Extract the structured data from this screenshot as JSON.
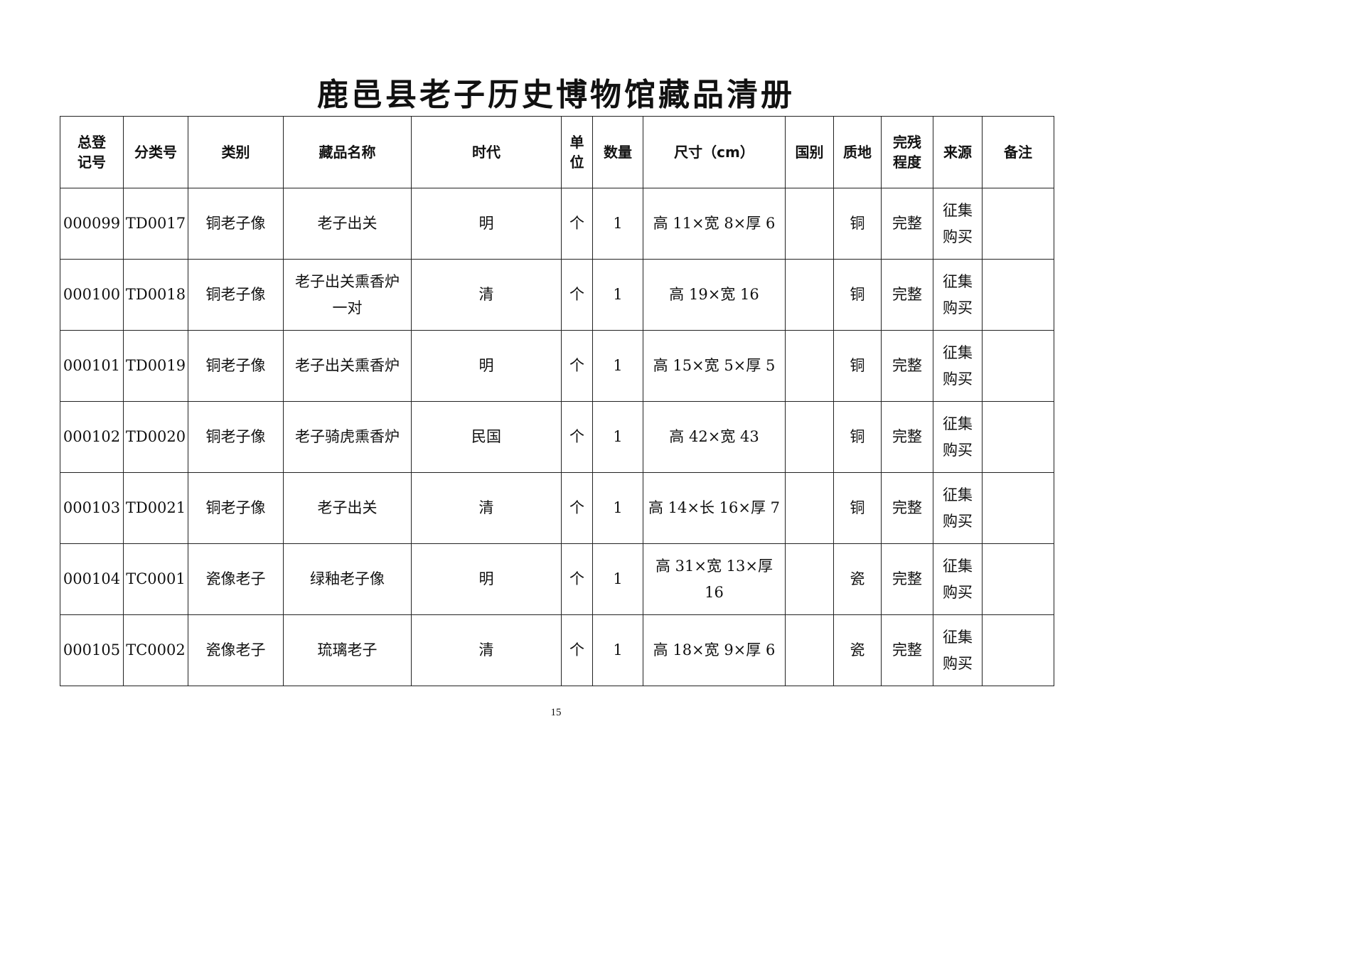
{
  "document": {
    "title": "鹿邑县老子历史博物馆藏品清册",
    "page_number": "15"
  },
  "table": {
    "headers": [
      "总登\n记号",
      "分类号",
      "类别",
      "藏品名称",
      "时代",
      "单\n位",
      "数量",
      "尺寸（cm）",
      "国别",
      "质地",
      "完残\n程度",
      "来源",
      "备注"
    ],
    "rows": [
      [
        "000099",
        "TD0017",
        "铜老子像",
        "老子出关",
        "明",
        "个",
        "1",
        "高 11×宽 8×厚 6",
        "",
        "铜",
        "完整",
        "征集\n购买",
        ""
      ],
      [
        "000100",
        "TD0018",
        "铜老子像",
        "老子出关熏香炉\n一对",
        "清",
        "个",
        "1",
        "高 19×宽 16",
        "",
        "铜",
        "完整",
        "征集\n购买",
        ""
      ],
      [
        "000101",
        "TD0019",
        "铜老子像",
        "老子出关熏香炉",
        "明",
        "个",
        "1",
        "高 15×宽 5×厚 5",
        "",
        "铜",
        "完整",
        "征集\n购买",
        ""
      ],
      [
        "000102",
        "TD0020",
        "铜老子像",
        "老子骑虎熏香炉",
        "民国",
        "个",
        "1",
        "高 42×宽 43",
        "",
        "铜",
        "完整",
        "征集\n购买",
        ""
      ],
      [
        "000103",
        "TD0021",
        "铜老子像",
        "老子出关",
        "清",
        "个",
        "1",
        "高 14×长 16×厚 7",
        "",
        "铜",
        "完整",
        "征集\n购买",
        ""
      ],
      [
        "000104",
        "TC0001",
        "瓷像老子",
        "绿釉老子像",
        "明",
        "个",
        "1",
        "高 31×宽 13×厚\n16",
        "",
        "瓷",
        "完整",
        "征集\n购买",
        ""
      ],
      [
        "000105",
        "TC0002",
        "瓷像老子",
        "琉璃老子",
        "清",
        "个",
        "1",
        "高 18×宽 9×厚 6",
        "",
        "瓷",
        "完整",
        "征集\n购买",
        ""
      ]
    ]
  }
}
